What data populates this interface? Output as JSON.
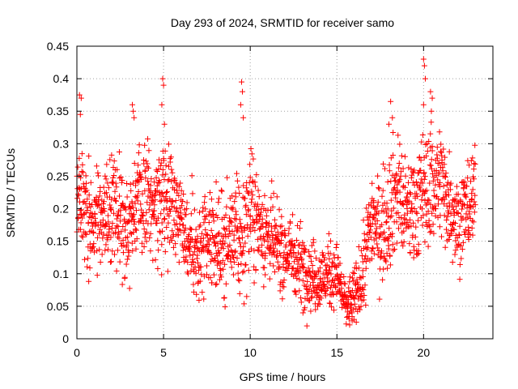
{
  "chart_data": {
    "type": "scatter",
    "title": "Day 293 of 2024, SRMTID for receiver samo",
    "xlabel": "GPS time / hours",
    "ylabel": "SRMTID / TECUs",
    "xlim": [
      0,
      24
    ],
    "ylim": [
      0,
      0.45
    ],
    "x_ticks": [
      0,
      5,
      10,
      15,
      20
    ],
    "x_tick_labels": [
      "0",
      "5",
      "10",
      "15",
      "20"
    ],
    "y_ticks": [
      0,
      0.05,
      0.1,
      0.15,
      0.2,
      0.25,
      0.3,
      0.35,
      0.4,
      0.45
    ],
    "y_tick_labels": [
      "0",
      "0.05",
      "0.1",
      "0.15",
      "0.2",
      "0.25",
      "0.3",
      "0.35",
      "0.4",
      "0.45"
    ],
    "grid": true,
    "marker": "+",
    "series_color": "#ff0000",
    "trend": {
      "x": [
        0,
        0.5,
        1,
        1.5,
        2,
        2.5,
        3,
        3.5,
        4,
        4.5,
        5,
        5.5,
        6,
        6.5,
        7,
        7.5,
        8,
        8.5,
        9,
        9.5,
        10,
        10.5,
        11,
        11.5,
        12,
        12.5,
        13,
        13.5,
        14,
        14.5,
        15,
        15.5,
        16,
        16.5,
        17,
        17.5,
        18,
        18.5,
        19,
        19.5,
        20,
        20.5,
        21,
        21.5,
        22,
        22.5,
        23
      ],
      "y": [
        0.22,
        0.2,
        0.19,
        0.18,
        0.2,
        0.19,
        0.17,
        0.22,
        0.21,
        0.2,
        0.23,
        0.21,
        0.19,
        0.15,
        0.12,
        0.14,
        0.15,
        0.14,
        0.16,
        0.15,
        0.2,
        0.18,
        0.16,
        0.14,
        0.13,
        0.13,
        0.11,
        0.1,
        0.09,
        0.1,
        0.1,
        0.05,
        0.06,
        0.1,
        0.19,
        0.16,
        0.2,
        0.23,
        0.19,
        0.21,
        0.22,
        0.24,
        0.24,
        0.21,
        0.18,
        0.2,
        0.22
      ],
      "spread": [
        0.05,
        0.06,
        0.05,
        0.05,
        0.06,
        0.06,
        0.05,
        0.06,
        0.05,
        0.06,
        0.06,
        0.05,
        0.05,
        0.05,
        0.05,
        0.05,
        0.05,
        0.05,
        0.05,
        0.06,
        0.06,
        0.05,
        0.05,
        0.04,
        0.04,
        0.04,
        0.04,
        0.035,
        0.035,
        0.035,
        0.03,
        0.025,
        0.03,
        0.04,
        0.05,
        0.05,
        0.06,
        0.06,
        0.05,
        0.06,
        0.06,
        0.06,
        0.06,
        0.05,
        0.05,
        0.05,
        0.05
      ]
    },
    "spikes": [
      {
        "x": 0.15,
        "y": 0.375
      },
      {
        "x": 0.2,
        "y": 0.345
      },
      {
        "x": 0.25,
        "y": 0.37
      },
      {
        "x": 3.2,
        "y": 0.36
      },
      {
        "x": 3.25,
        "y": 0.35
      },
      {
        "x": 3.3,
        "y": 0.34
      },
      {
        "x": 4.95,
        "y": 0.4
      },
      {
        "x": 5.0,
        "y": 0.39
      },
      {
        "x": 4.9,
        "y": 0.36
      },
      {
        "x": 5.05,
        "y": 0.33
      },
      {
        "x": 9.5,
        "y": 0.395
      },
      {
        "x": 9.55,
        "y": 0.38
      },
      {
        "x": 9.45,
        "y": 0.36
      },
      {
        "x": 9.6,
        "y": 0.34
      },
      {
        "x": 18.1,
        "y": 0.365
      },
      {
        "x": 18.2,
        "y": 0.34
      },
      {
        "x": 18.0,
        "y": 0.33
      },
      {
        "x": 20.0,
        "y": 0.43
      },
      {
        "x": 20.05,
        "y": 0.42
      },
      {
        "x": 20.1,
        "y": 0.4
      },
      {
        "x": 20.0,
        "y": 0.36
      },
      {
        "x": 20.4,
        "y": 0.38
      },
      {
        "x": 20.5,
        "y": 0.37
      },
      {
        "x": 20.45,
        "y": 0.35
      }
    ]
  }
}
